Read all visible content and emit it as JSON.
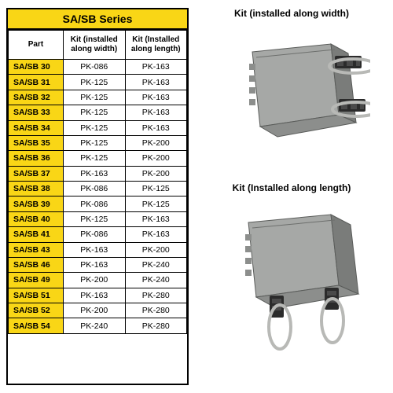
{
  "series_title": "SA/SB Series",
  "columns": {
    "part": "Part",
    "width_kit": "Kit (installed along width)",
    "length_kit": "Kit (Installed along length)"
  },
  "rows": [
    {
      "part": "SA/SB 30",
      "w": "PK-086",
      "l": "PK-163"
    },
    {
      "part": "SA/SB 31",
      "w": "PK-125",
      "l": "PK-163"
    },
    {
      "part": "SA/SB 32",
      "w": "PK-125",
      "l": "PK-163"
    },
    {
      "part": "SA/SB 33",
      "w": "PK-125",
      "l": "PK-163"
    },
    {
      "part": "SA/SB 34",
      "w": "PK-125",
      "l": "PK-163"
    },
    {
      "part": "SA/SB 35",
      "w": "PK-125",
      "l": "PK-200"
    },
    {
      "part": "SA/SB 36",
      "w": "PK-125",
      "l": "PK-200"
    },
    {
      "part": "SA/SB 37",
      "w": "PK-163",
      "l": "PK-200"
    },
    {
      "part": "SA/SB 38",
      "w": "PK-086",
      "l": "PK-125"
    },
    {
      "part": "SA/SB 39",
      "w": "PK-086",
      "l": "PK-125"
    },
    {
      "part": "SA/SB 40",
      "w": "PK-125",
      "l": "PK-163"
    },
    {
      "part": "SA/SB 41",
      "w": "PK-086",
      "l": "PK-163"
    },
    {
      "part": "SA/SB 43",
      "w": "PK-163",
      "l": "PK-200"
    },
    {
      "part": "SA/SB 46",
      "w": "PK-163",
      "l": "PK-240"
    },
    {
      "part": "SA/SB 49",
      "w": "PK-200",
      "l": "PK-240"
    },
    {
      "part": "SA/SB 51",
      "w": "PK-163",
      "l": "PK-280"
    },
    {
      "part": "SA/SB 52",
      "w": "PK-200",
      "l": "PK-280"
    },
    {
      "part": "SA/SB 54",
      "w": "PK-240",
      "l": "PK-280"
    }
  ],
  "img_labels": {
    "width": "Kit (installed along width)",
    "length": "Kit (Installed along length)"
  },
  "colors": {
    "header_bg": "#f9d616",
    "border": "#000000",
    "enclosure_body": "#a6a8a6",
    "enclosure_dark": "#7a7c7a",
    "bracket": "#2b2b2b",
    "band": "#b8b9b6"
  },
  "table_style": {
    "font_family": "Arial",
    "header_fontsize_pt": 10,
    "cell_fontsize_pt": 10.5,
    "title_fontsize_pt": 14
  }
}
